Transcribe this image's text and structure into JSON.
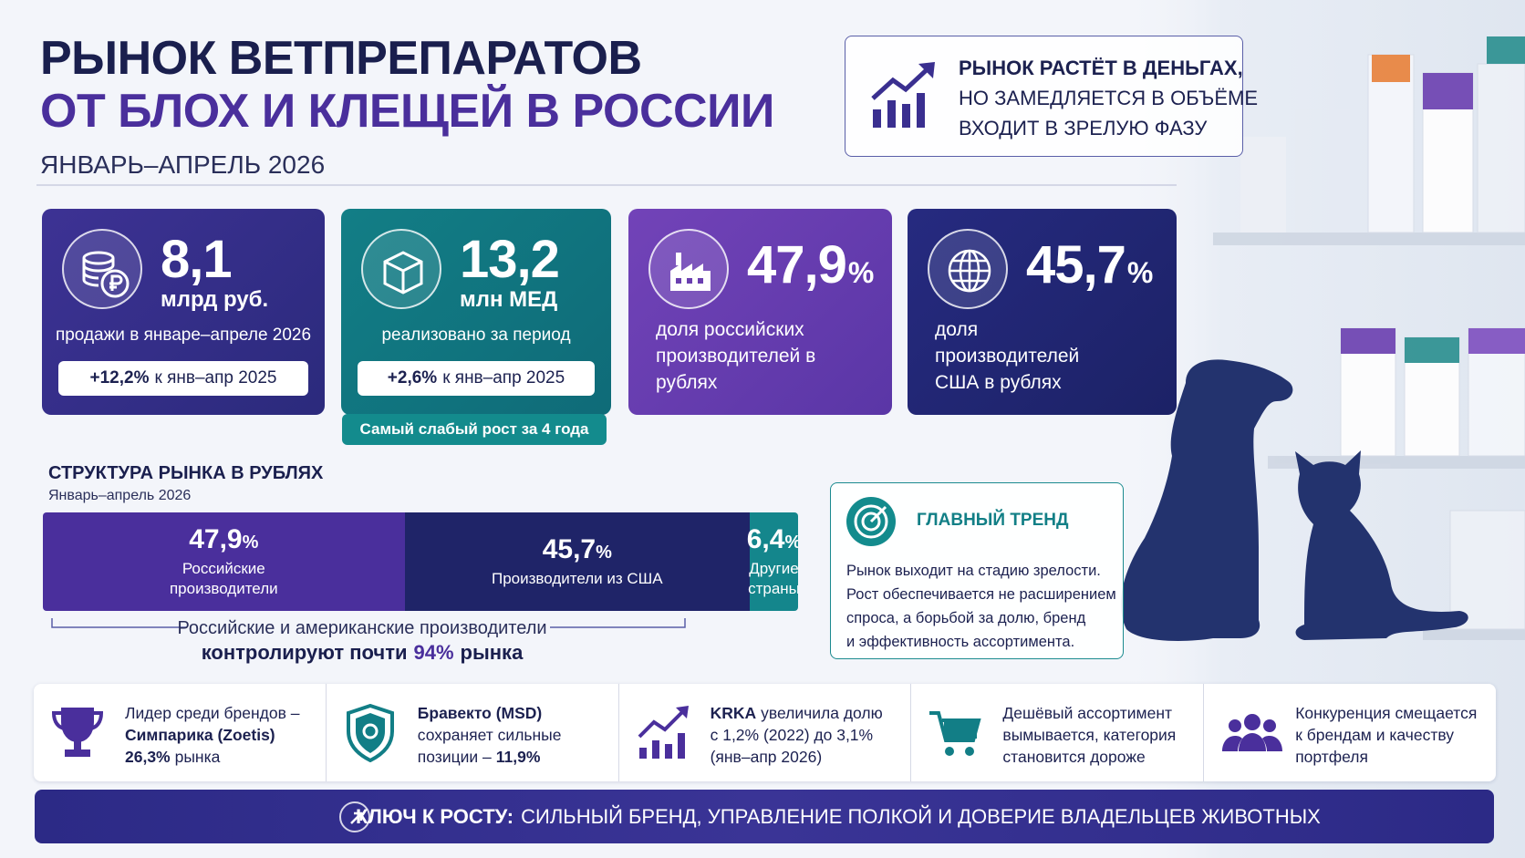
{
  "header": {
    "title_line1": "РЫНОК ВЕТПРЕПАРАТОВ",
    "title_line2": "ОТ БЛОХ И КЛЕЩЕЙ В РОССИИ",
    "period": "ЯНВАРЬ–АПРЕЛЬ 2026"
  },
  "headline_box": {
    "lines": [
      "РЫНОК РАСТЁТ В ДЕНЬГАХ,",
      "НО ЗАМЕДЛЯЕТСЯ В ОБЪЁМЕ",
      "ВХОДИТ В ЗРЕЛУЮ ФАЗУ"
    ]
  },
  "kpi_cards": [
    {
      "value": "8,1",
      "unit": "млрд руб.",
      "description": "продажи в январе–апреле 2026",
      "change": "+12,2%",
      "change_text": "к янв–апр 2025"
    },
    {
      "value": "13,2",
      "unit": "млн МЕД",
      "description": "реализовано за период",
      "change": "+2,6%",
      "change_text": "к янв–апр 2025",
      "badge": "Самый слабый рост за 4 года"
    },
    {
      "value": "47,9",
      "unit": "%",
      "description": "доля российских производителей в рублях"
    },
    {
      "value": "45,7",
      "unit": "%",
      "description": "доля производителей США в рублях"
    }
  ],
  "market_structure": {
    "title": "СТРУКТУРА РЫНКА В РУБЛЯХ",
    "subtitle": "Январь–апрель 2026",
    "segments": [
      {
        "value": 47.9,
        "value_label": "47,9",
        "unit": "%",
        "label": "Российские производители",
        "color": "#4a2f9c"
      },
      {
        "value": 45.7,
        "value_label": "45,7",
        "unit": "%",
        "label": "Производители из США",
        "color": "#1f2468"
      },
      {
        "value": 6.4,
        "value_label": "6,4",
        "unit": "%",
        "label": "Другие страны",
        "color": "#14868c"
      }
    ],
    "note_line1": "Российские и американские производители",
    "note_line2_start": "контролируют почти",
    "note_highlight": "94%",
    "note_line2_end": "рынка"
  },
  "trend": {
    "title": "ГЛАВНЫЙ ТРЕНД",
    "lines": [
      "Рынок выходит на стадию зрелости.",
      "Рост обеспечивается не расширением",
      "спроса, а борьбой за долю, бренд",
      "и эффективность ассортимента."
    ]
  },
  "highlights": [
    {
      "lines": [
        [
          {
            "text": "Лидер среди брендов –"
          }
        ],
        [
          {
            "text": "Симпарика (Zoetis)",
            "bold": true
          }
        ],
        [
          {
            "text": "26,3%",
            "bold": true
          },
          {
            "text": "рынка"
          }
        ]
      ]
    },
    {
      "lines": [
        [
          {
            "text": "Бравекто (MSD)",
            "bold": true
          }
        ],
        [
          {
            "text": "сохраняет сильные"
          }
        ],
        [
          {
            "text": "позиции –"
          },
          {
            "text": "11,9%",
            "bold": true
          }
        ]
      ]
    },
    {
      "lines": [
        [
          {
            "text": "KRKA",
            "bold": true
          },
          {
            "text": "увеличила долю"
          }
        ],
        [
          {
            "text": "с 1,2% (2022) до 3,1%"
          }
        ],
        [
          {
            "text": "(янв–апр 2026)"
          }
        ]
      ]
    },
    {
      "lines": [
        [
          {
            "text": "Дешёвый ассортимент"
          }
        ],
        [
          {
            "text": "вымывается, категория"
          }
        ],
        [
          {
            "text": "становится дороже"
          }
        ]
      ]
    },
    {
      "lines": [
        [
          {
            "text": "Конкуренция смещается"
          }
        ],
        [
          {
            "text": "к брендам и качеству"
          }
        ],
        [
          {
            "text": "портфеля"
          }
        ]
      ]
    }
  ],
  "footer": {
    "lead": "КЛЮЧ К РОСТУ:",
    "text": "СИЛЬНЫЙ БРЕНД, УПРАВЛЕНИЕ ПОЛКОЙ И ДОВЕРИЕ ВЛАДЕЛЬЦЕВ ЖИВОТНЫХ"
  }
}
